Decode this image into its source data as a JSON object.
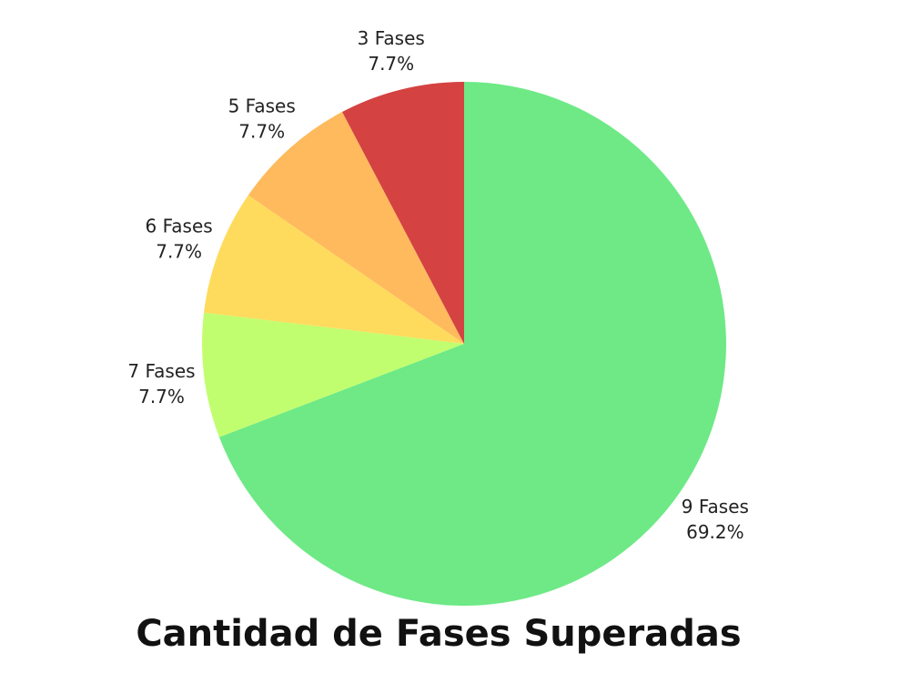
{
  "chart_data": {
    "type": "pie",
    "title": "Cantidad de Fases Superadas",
    "slices": [
      {
        "label": "9 Fases",
        "value": 69.2,
        "percent_label": "69.2%",
        "color": "#6ee986"
      },
      {
        "label": "7 Fases",
        "value": 7.7,
        "percent_label": "7.7%",
        "color": "#c1fe6f"
      },
      {
        "label": "6 Fases",
        "value": 7.7,
        "percent_label": "7.7%",
        "color": "#ffdb5d"
      },
      {
        "label": "5 Fases",
        "value": 7.7,
        "percent_label": "7.7%",
        "color": "#feba5d"
      },
      {
        "label": "3 Fases",
        "value": 7.7,
        "percent_label": "7.7%",
        "color": "#d44242"
      }
    ],
    "start": "12 o'clock",
    "direction": "clockwise",
    "legend": "none"
  }
}
